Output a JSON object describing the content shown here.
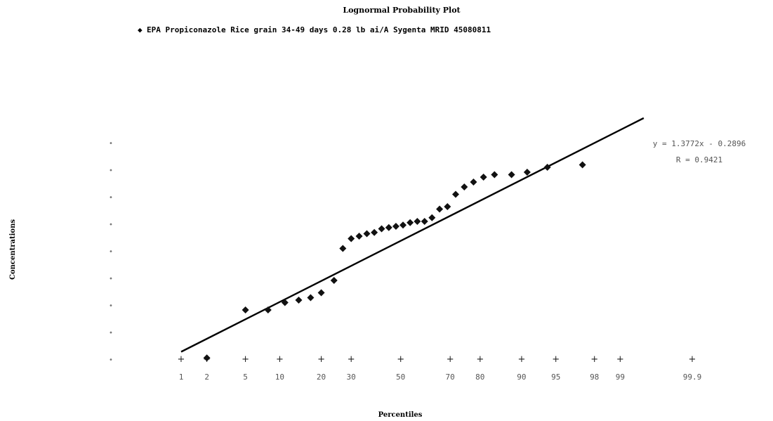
{
  "colors": {
    "marker": "#111111",
    "trendline": "#000000",
    "text": "#000000",
    "tick_text": "#555555"
  },
  "chart_data": {
    "type": "scatter",
    "title": "Lognormal Probability Plot",
    "legend_marker": "◆",
    "legend_label": "EPA Propiconazole Rice grain 34-49 days 0.28 lb ai/A Sygenta MRID 45080811",
    "xlabel": "Percentiles",
    "ylabel": "Concentrations",
    "x_scale": "normal-probability",
    "x_ticks": [
      1,
      2,
      5,
      10,
      20,
      30,
      50,
      70,
      80,
      90,
      95,
      98,
      99,
      99.9
    ],
    "x_tick_labels": [
      "1",
      "2",
      "5",
      "10",
      "20",
      "30",
      "50",
      "70",
      "80",
      "90",
      "95",
      "98",
      "99",
      "99.9"
    ],
    "y_tick_labels": [
      "",
      "",
      "",
      "",
      "",
      "",
      "",
      "",
      ""
    ],
    "ylim": [
      0,
      8.8
    ],
    "grid": false,
    "legend_position": "top-center",
    "trendline": {
      "equation": "y = 1.3772x - 0.2896",
      "r2": "R = 0.9421",
      "x_start": 1,
      "x_end": 99.5,
      "y_start": 0.3,
      "y_end": 9.8
    },
    "series": [
      {
        "points": [
          {
            "x": 2,
            "y": 0.05
          },
          {
            "x": 5,
            "y": 2.0
          },
          {
            "x": 8,
            "y": 2.0
          },
          {
            "x": 11,
            "y": 2.3
          },
          {
            "x": 14,
            "y": 2.4
          },
          {
            "x": 17,
            "y": 2.5
          },
          {
            "x": 20,
            "y": 2.7
          },
          {
            "x": 24,
            "y": 3.2
          },
          {
            "x": 27,
            "y": 4.5
          },
          {
            "x": 30,
            "y": 4.9
          },
          {
            "x": 33,
            "y": 5.0
          },
          {
            "x": 36,
            "y": 5.1
          },
          {
            "x": 39,
            "y": 5.15
          },
          {
            "x": 42,
            "y": 5.3
          },
          {
            "x": 45,
            "y": 5.35
          },
          {
            "x": 48,
            "y": 5.4
          },
          {
            "x": 51,
            "y": 5.45
          },
          {
            "x": 54,
            "y": 5.55
          },
          {
            "x": 57,
            "y": 5.6
          },
          {
            "x": 60,
            "y": 5.6
          },
          {
            "x": 63,
            "y": 5.75
          },
          {
            "x": 66,
            "y": 6.1
          },
          {
            "x": 69,
            "y": 6.2
          },
          {
            "x": 72,
            "y": 6.7
          },
          {
            "x": 75,
            "y": 7.0
          },
          {
            "x": 78,
            "y": 7.2
          },
          {
            "x": 81,
            "y": 7.4
          },
          {
            "x": 84,
            "y": 7.5
          },
          {
            "x": 88,
            "y": 7.5
          },
          {
            "x": 91,
            "y": 7.6
          },
          {
            "x": 94,
            "y": 7.8
          },
          {
            "x": 97.3,
            "y": 7.9
          }
        ]
      }
    ]
  }
}
